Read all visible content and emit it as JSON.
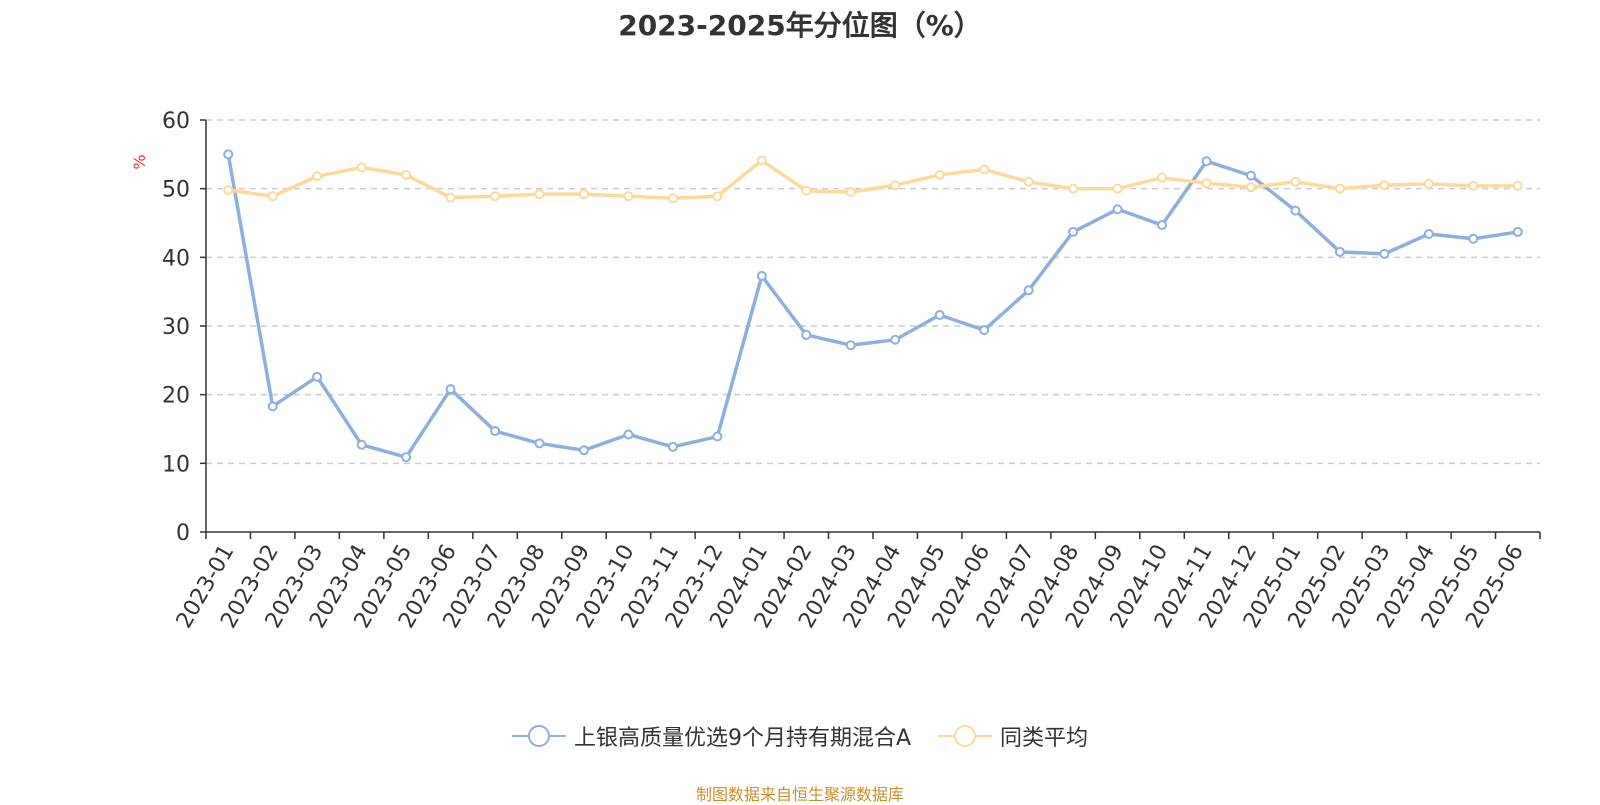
{
  "chart_data": {
    "type": "line",
    "title": "2023-2025年分位图（%）",
    "ylabel": "%",
    "ylim": [
      0,
      60
    ],
    "yticks": [
      0,
      10,
      20,
      30,
      40,
      50,
      60
    ],
    "grid": true,
    "legend_position": "bottom",
    "categories": [
      "2023-01",
      "2023-02",
      "2023-03",
      "2023-04",
      "2023-05",
      "2023-06",
      "2023-07",
      "2023-08",
      "2023-09",
      "2023-10",
      "2023-11",
      "2023-12",
      "2024-01",
      "2024-02",
      "2024-03",
      "2024-04",
      "2024-05",
      "2024-06",
      "2024-07",
      "2024-08",
      "2024-09",
      "2024-10",
      "2024-11",
      "2024-12",
      "2025-01",
      "2025-02",
      "2025-03",
      "2025-04",
      "2025-05",
      "2025-06"
    ],
    "series": [
      {
        "name": "上银高质量优选9个月持有期混合A",
        "color": "#8eaedb",
        "values": [
          55.0,
          18.3,
          22.6,
          12.7,
          10.9,
          20.8,
          14.7,
          12.9,
          11.9,
          14.2,
          12.4,
          13.9,
          37.3,
          28.7,
          27.2,
          28.0,
          31.6,
          29.4,
          35.2,
          43.7,
          47.0,
          44.7,
          54.0,
          51.9,
          46.8,
          40.8,
          40.5,
          43.4,
          42.7,
          43.7
        ]
      },
      {
        "name": "同类平均",
        "color": "#fcd99a",
        "values": [
          49.8,
          48.9,
          51.8,
          53.1,
          52.0,
          48.7,
          48.9,
          49.2,
          49.2,
          48.9,
          48.6,
          48.9,
          54.1,
          49.7,
          49.5,
          50.5,
          52.0,
          52.8,
          51.0,
          50.0,
          50.0,
          51.6,
          50.8,
          50.2,
          51.0,
          50.0,
          50.5,
          50.7,
          50.4,
          50.4
        ]
      }
    ]
  },
  "source_text": "制图数据来自恒生聚源数据库"
}
